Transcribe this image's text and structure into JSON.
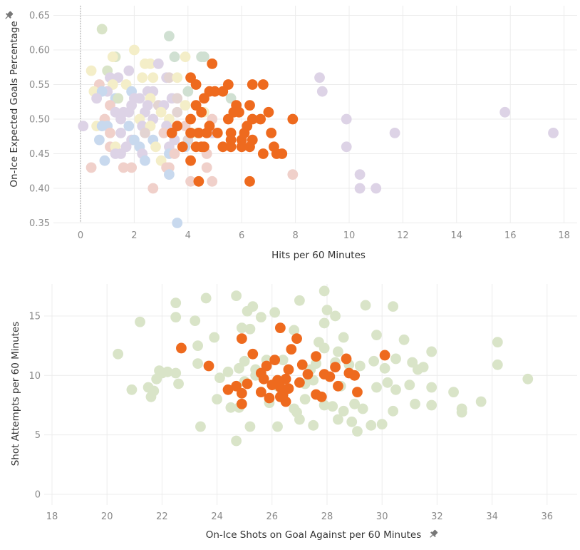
{
  "colors": {
    "highlight": "#ee6a1e",
    "muted": [
      "#d9e4c8",
      "#f4eec8",
      "#ddd3e6",
      "#c8d9ee",
      "#f0d0ca",
      "#e3d4d2",
      "#d0e0d2"
    ]
  },
  "chart_data": [
    {
      "type": "scatter",
      "title": "",
      "xlabel": "Hits per 60 Minutes",
      "ylabel": "On-Ice Expected Goals Percentage",
      "xlim": [
        -1,
        18.5
      ],
      "ylim": [
        0.335,
        0.655
      ],
      "x_ticks": [
        "0",
        "2",
        "4",
        "6",
        "8",
        "10",
        "12",
        "14",
        "16",
        "18"
      ],
      "y_ticks": [
        "0.35",
        "0.40",
        "0.45",
        "0.50",
        "0.55",
        "0.60",
        "0.65"
      ],
      "reference_line_x": 0,
      "highlight_series": {
        "points": [
          [
            4.9,
            0.58
          ],
          [
            4.1,
            0.56
          ],
          [
            4.3,
            0.55
          ],
          [
            5.5,
            0.55
          ],
          [
            6.4,
            0.55
          ],
          [
            6.8,
            0.55
          ],
          [
            5.3,
            0.54
          ],
          [
            4.8,
            0.54
          ],
          [
            5.0,
            0.54
          ],
          [
            4.6,
            0.53
          ],
          [
            4.3,
            0.52
          ],
          [
            5.8,
            0.52
          ],
          [
            6.3,
            0.52
          ],
          [
            4.5,
            0.51
          ],
          [
            5.7,
            0.51
          ],
          [
            5.9,
            0.51
          ],
          [
            7.0,
            0.51
          ],
          [
            4.1,
            0.5
          ],
          [
            5.5,
            0.5
          ],
          [
            6.4,
            0.5
          ],
          [
            6.7,
            0.5
          ],
          [
            7.9,
            0.5
          ],
          [
            3.6,
            0.49
          ],
          [
            4.8,
            0.49
          ],
          [
            6.2,
            0.49
          ],
          [
            3.4,
            0.48
          ],
          [
            4.1,
            0.48
          ],
          [
            4.4,
            0.48
          ],
          [
            4.7,
            0.48
          ],
          [
            5.1,
            0.48
          ],
          [
            5.6,
            0.48
          ],
          [
            6.1,
            0.48
          ],
          [
            7.1,
            0.48
          ],
          [
            5.6,
            0.47
          ],
          [
            6.0,
            0.47
          ],
          [
            6.4,
            0.47
          ],
          [
            3.8,
            0.46
          ],
          [
            4.3,
            0.46
          ],
          [
            4.5,
            0.46
          ],
          [
            4.6,
            0.46
          ],
          [
            5.3,
            0.46
          ],
          [
            5.6,
            0.46
          ],
          [
            6.0,
            0.46
          ],
          [
            6.3,
            0.46
          ],
          [
            7.2,
            0.46
          ],
          [
            6.8,
            0.45
          ],
          [
            7.3,
            0.45
          ],
          [
            7.5,
            0.45
          ],
          [
            4.1,
            0.44
          ],
          [
            4.4,
            0.41
          ],
          [
            6.3,
            0.41
          ]
        ]
      },
      "other_points": [
        [
          0.8,
          0.63,
          0
        ],
        [
          3.3,
          0.62,
          6
        ],
        [
          1.3,
          0.59,
          0
        ],
        [
          1.2,
          0.59,
          1
        ],
        [
          2.0,
          0.6,
          1
        ],
        [
          3.5,
          0.59,
          6
        ],
        [
          3.9,
          0.59,
          1
        ],
        [
          4.5,
          0.59,
          6
        ],
        [
          4.6,
          0.59,
          6
        ],
        [
          2.4,
          0.58,
          1
        ],
        [
          2.6,
          0.58,
          1
        ],
        [
          2.9,
          0.58,
          2
        ],
        [
          0.4,
          0.57,
          1
        ],
        [
          1.0,
          0.57,
          0
        ],
        [
          1.8,
          0.57,
          2
        ],
        [
          2.3,
          0.56,
          1
        ],
        [
          1.1,
          0.56,
          2
        ],
        [
          1.4,
          0.56,
          2
        ],
        [
          2.7,
          0.56,
          1
        ],
        [
          3.2,
          0.56,
          2
        ],
        [
          3.3,
          0.56,
          5
        ],
        [
          3.6,
          0.56,
          1
        ],
        [
          8.9,
          0.56,
          2
        ],
        [
          0.7,
          0.55,
          4
        ],
        [
          1.2,
          0.55,
          1
        ],
        [
          1.7,
          0.55,
          1
        ],
        [
          1.0,
          0.54,
          2
        ],
        [
          0.5,
          0.54,
          1
        ],
        [
          0.8,
          0.54,
          3
        ],
        [
          1.9,
          0.54,
          3
        ],
        [
          2.5,
          0.54,
          2
        ],
        [
          2.7,
          0.54,
          2
        ],
        [
          4.0,
          0.54,
          6
        ],
        [
          9.0,
          0.54,
          2
        ],
        [
          0.6,
          0.53,
          2
        ],
        [
          1.3,
          0.53,
          3
        ],
        [
          1.4,
          0.53,
          0
        ],
        [
          2.0,
          0.53,
          2
        ],
        [
          2.2,
          0.53,
          2
        ],
        [
          2.6,
          0.53,
          1
        ],
        [
          3.4,
          0.53,
          2
        ],
        [
          3.6,
          0.53,
          5
        ],
        [
          5.6,
          0.53,
          6
        ],
        [
          1.1,
          0.52,
          4
        ],
        [
          1.9,
          0.52,
          2
        ],
        [
          2.5,
          0.52,
          2
        ],
        [
          2.9,
          0.52,
          5
        ],
        [
          3.1,
          0.52,
          2
        ],
        [
          3.9,
          0.52,
          1
        ],
        [
          1.3,
          0.51,
          2
        ],
        [
          1.6,
          0.51,
          2
        ],
        [
          1.8,
          0.51,
          2
        ],
        [
          2.4,
          0.51,
          2
        ],
        [
          3.0,
          0.51,
          1
        ],
        [
          3.6,
          0.51,
          5
        ],
        [
          4.6,
          0.51,
          1
        ],
        [
          0.1,
          0.49,
          2
        ],
        [
          0.9,
          0.5,
          4
        ],
        [
          1.5,
          0.5,
          2
        ],
        [
          2.2,
          0.5,
          1
        ],
        [
          2.7,
          0.5,
          2
        ],
        [
          3.3,
          0.5,
          1
        ],
        [
          4.9,
          0.5,
          4
        ],
        [
          9.9,
          0.5,
          2
        ],
        [
          0.6,
          0.49,
          1
        ],
        [
          0.8,
          0.49,
          3
        ],
        [
          1.0,
          0.49,
          3
        ],
        [
          1.8,
          0.49,
          3
        ],
        [
          2.3,
          0.49,
          2
        ],
        [
          2.6,
          0.49,
          1
        ],
        [
          3.2,
          0.49,
          2
        ],
        [
          3.9,
          0.49,
          4
        ],
        [
          1.1,
          0.48,
          4
        ],
        [
          1.5,
          0.48,
          2
        ],
        [
          2.4,
          0.48,
          5
        ],
        [
          3.1,
          0.48,
          4
        ],
        [
          4.3,
          0.48,
          1
        ],
        [
          4.9,
          0.48,
          2
        ],
        [
          11.7,
          0.48,
          2
        ],
        [
          15.8,
          0.51,
          2
        ],
        [
          17.6,
          0.48,
          2
        ],
        [
          0.7,
          0.47,
          3
        ],
        [
          1.9,
          0.47,
          2
        ],
        [
          2.0,
          0.47,
          3
        ],
        [
          2.7,
          0.47,
          3
        ],
        [
          3.5,
          0.47,
          2
        ],
        [
          4.0,
          0.47,
          5
        ],
        [
          1.1,
          0.46,
          4
        ],
        [
          1.3,
          0.46,
          1
        ],
        [
          1.7,
          0.46,
          2
        ],
        [
          2.2,
          0.46,
          3
        ],
        [
          2.8,
          0.46,
          1
        ],
        [
          3.3,
          0.46,
          2
        ],
        [
          3.9,
          0.46,
          3
        ],
        [
          9.9,
          0.46,
          2
        ],
        [
          1.3,
          0.45,
          2
        ],
        [
          1.5,
          0.45,
          2
        ],
        [
          2.3,
          0.45,
          2
        ],
        [
          3.3,
          0.45,
          3
        ],
        [
          3.5,
          0.45,
          4
        ],
        [
          4.7,
          0.45,
          4
        ],
        [
          0.9,
          0.44,
          3
        ],
        [
          2.4,
          0.44,
          3
        ],
        [
          3.0,
          0.44,
          1
        ],
        [
          0.4,
          0.43,
          4
        ],
        [
          1.6,
          0.43,
          4
        ],
        [
          1.9,
          0.43,
          4
        ],
        [
          3.2,
          0.43,
          4
        ],
        [
          3.3,
          0.43,
          4
        ],
        [
          4.7,
          0.43,
          4
        ],
        [
          3.3,
          0.42,
          3
        ],
        [
          7.9,
          0.42,
          4
        ],
        [
          10.4,
          0.42,
          2
        ],
        [
          4.1,
          0.41,
          4
        ],
        [
          4.9,
          0.41,
          4
        ],
        [
          2.7,
          0.4,
          4
        ],
        [
          10.4,
          0.4,
          2
        ],
        [
          11.0,
          0.4,
          2
        ],
        [
          3.6,
          0.35,
          3
        ]
      ]
    },
    {
      "type": "scatter",
      "title": "",
      "xlabel": "On-Ice Shots on Goal Against per 60 Minutes",
      "ylabel": "Shot Attempts per 60 Minutes",
      "xlim": [
        17.6,
        37
      ],
      "ylim": [
        -0.8,
        18.3
      ],
      "x_ticks": [
        "18",
        "20",
        "22",
        "24",
        "26",
        "28",
        "30",
        "32",
        "34",
        "36"
      ],
      "y_ticks": [
        "0",
        "5",
        "10",
        "15"
      ],
      "highlight_series": {
        "points": [
          [
            26.3,
            14.0
          ],
          [
            22.7,
            12.3
          ],
          [
            24.9,
            13.1
          ],
          [
            26.9,
            13.1
          ],
          [
            26.7,
            12.2
          ],
          [
            25.3,
            11.8
          ],
          [
            27.6,
            11.6
          ],
          [
            28.7,
            11.4
          ],
          [
            30.1,
            11.7
          ],
          [
            26.1,
            11.3
          ],
          [
            23.7,
            10.8
          ],
          [
            25.8,
            10.8
          ],
          [
            27.1,
            10.9
          ],
          [
            28.3,
            10.7
          ],
          [
            26.6,
            10.5
          ],
          [
            29.0,
            10.0
          ],
          [
            25.6,
            10.2
          ],
          [
            27.3,
            10.1
          ],
          [
            27.9,
            10.1
          ],
          [
            28.1,
            9.9
          ],
          [
            28.8,
            10.2
          ],
          [
            25.7,
            9.7
          ],
          [
            26.2,
            9.6
          ],
          [
            26.5,
            9.7
          ],
          [
            27.0,
            9.4
          ],
          [
            26.0,
            9.2
          ],
          [
            25.1,
            9.3
          ],
          [
            24.7,
            9.1
          ],
          [
            26.3,
            9.0
          ],
          [
            26.6,
            8.9
          ],
          [
            28.4,
            9.1
          ],
          [
            24.4,
            8.8
          ],
          [
            24.9,
            8.5
          ],
          [
            25.6,
            8.6
          ],
          [
            26.4,
            8.4
          ],
          [
            27.6,
            8.4
          ],
          [
            29.1,
            8.6
          ],
          [
            25.9,
            8.1
          ],
          [
            26.3,
            8.2
          ],
          [
            27.8,
            8.2
          ],
          [
            26.5,
            7.8
          ],
          [
            24.9,
            7.6
          ]
        ]
      },
      "other_points": [
        [
          27.9,
          17.1
        ],
        [
          24.7,
          16.7
        ],
        [
          23.6,
          16.5
        ],
        [
          22.5,
          16.1
        ],
        [
          21.2,
          14.5
        ],
        [
          22.5,
          14.9
        ],
        [
          23.2,
          14.6
        ],
        [
          25.1,
          15.4
        ],
        [
          25.3,
          15.8
        ],
        [
          26.1,
          15.3
        ],
        [
          25.6,
          14.9
        ],
        [
          28.0,
          15.5
        ],
        [
          28.3,
          15.0
        ],
        [
          29.4,
          15.9
        ],
        [
          30.4,
          15.8
        ],
        [
          27.0,
          16.3
        ],
        [
          24.9,
          14.0
        ],
        [
          25.2,
          13.9
        ],
        [
          26.8,
          13.8
        ],
        [
          27.9,
          14.4
        ],
        [
          23.9,
          13.2
        ],
        [
          27.7,
          12.8
        ],
        [
          28.6,
          13.2
        ],
        [
          29.8,
          13.4
        ],
        [
          30.8,
          13.0
        ],
        [
          31.8,
          12.0
        ],
        [
          34.2,
          12.8
        ],
        [
          20.4,
          11.8
        ],
        [
          23.3,
          12.5
        ],
        [
          25.0,
          11.2
        ],
        [
          26.4,
          11.3
        ],
        [
          27.9,
          12.3
        ],
        [
          28.4,
          12.0
        ],
        [
          30.5,
          11.4
        ],
        [
          31.1,
          11.1
        ],
        [
          31.5,
          10.7
        ],
        [
          20.9,
          8.8
        ],
        [
          21.6,
          8.2
        ],
        [
          21.8,
          9.7
        ],
        [
          21.9,
          10.4
        ],
        [
          22.2,
          10.3
        ],
        [
          22.5,
          10.2
        ],
        [
          22.6,
          9.3
        ],
        [
          23.3,
          11.0
        ],
        [
          24.4,
          10.3
        ],
        [
          24.8,
          10.6
        ],
        [
          25.4,
          10.5
        ],
        [
          25.8,
          11.3
        ],
        [
          27.4,
          10.5
        ],
        [
          27.6,
          11.0
        ],
        [
          28.3,
          11.1
        ],
        [
          28.8,
          10.9
        ],
        [
          29.2,
          10.8
        ],
        [
          29.7,
          11.2
        ],
        [
          30.1,
          10.6
        ],
        [
          31.3,
          10.5
        ],
        [
          34.2,
          10.9
        ],
        [
          21.7,
          8.7
        ],
        [
          21.5,
          9.0
        ],
        [
          22.0,
          10.2
        ],
        [
          24.1,
          9.8
        ],
        [
          25.0,
          9.5
        ],
        [
          25.4,
          10.0
        ],
        [
          26.2,
          9.1
        ],
        [
          27.2,
          9.3
        ],
        [
          27.5,
          9.6
        ],
        [
          28.5,
          9.1
        ],
        [
          29.8,
          9.0
        ],
        [
          30.2,
          9.4
        ],
        [
          30.5,
          8.8
        ],
        [
          31.0,
          9.2
        ],
        [
          31.8,
          9.0
        ],
        [
          35.3,
          9.7
        ],
        [
          32.6,
          8.6
        ],
        [
          24.0,
          8.0
        ],
        [
          24.5,
          7.3
        ],
        [
          24.8,
          7.3
        ],
        [
          25.9,
          7.7
        ],
        [
          26.8,
          7.2
        ],
        [
          26.9,
          6.9
        ],
        [
          27.2,
          8.0
        ],
        [
          27.9,
          7.5
        ],
        [
          28.2,
          7.4
        ],
        [
          28.6,
          7.0
        ],
        [
          29.0,
          7.6
        ],
        [
          29.3,
          7.2
        ],
        [
          30.4,
          7.0
        ],
        [
          31.2,
          7.6
        ],
        [
          31.8,
          7.5
        ],
        [
          32.9,
          7.2
        ],
        [
          33.6,
          7.8
        ],
        [
          23.4,
          5.7
        ],
        [
          25.2,
          5.7
        ],
        [
          26.2,
          5.7
        ],
        [
          27.0,
          6.3
        ],
        [
          27.5,
          5.8
        ],
        [
          28.4,
          6.3
        ],
        [
          28.9,
          6.1
        ],
        [
          29.1,
          5.3
        ],
        [
          29.6,
          5.8
        ],
        [
          30.0,
          5.9
        ],
        [
          24.7,
          4.5
        ],
        [
          32.9,
          6.9
        ]
      ]
    }
  ]
}
